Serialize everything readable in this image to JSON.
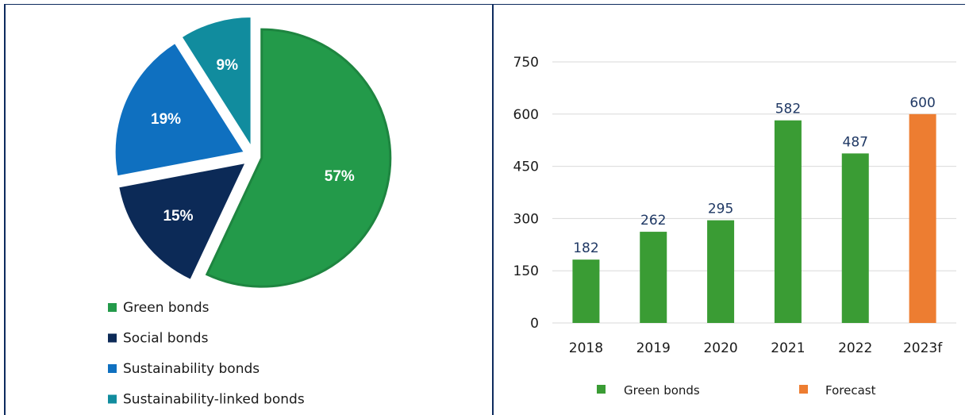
{
  "chart_data": [
    {
      "type": "pie",
      "slices": [
        {
          "label": "Green bonds",
          "value": 57,
          "text": "57%",
          "color": "#239a4a",
          "explode": 10
        },
        {
          "label": "Social bonds",
          "value": 15,
          "text": "15%",
          "color": "#0c2a57",
          "explode": 14
        },
        {
          "label": "Sustainability bonds",
          "value": 19,
          "text": "19%",
          "color": "#0f70c0",
          "explode": 14
        },
        {
          "label": "Sustainability-linked bonds",
          "value": 9,
          "text": "9%",
          "color": "#118c9e",
          "explode": 14
        }
      ],
      "legend": [
        "Green bonds",
        "Social bonds",
        "Sustainability bonds",
        "Sustainability-linked bonds"
      ],
      "legend_position": "bottom-left"
    },
    {
      "type": "bar",
      "categories": [
        "2018",
        "2019",
        "2020",
        "2021",
        "2022",
        "2023f"
      ],
      "values": [
        182,
        262,
        295,
        582,
        487,
        600
      ],
      "value_labels": [
        "182",
        "262",
        "295",
        "582",
        "487",
        "600"
      ],
      "bar_colors": [
        "#3a9c34",
        "#3a9c34",
        "#3a9c34",
        "#3a9c34",
        "#3a9c34",
        "#ed7d31"
      ],
      "yticks": [
        "0",
        "150",
        "300",
        "450",
        "600",
        "750"
      ],
      "ylim": [
        0,
        750
      ],
      "grid": true,
      "legend": [
        {
          "name": "Green bonds",
          "color": "#3a9c34"
        },
        {
          "name": "Forecast",
          "color": "#ed7d31"
        }
      ],
      "legend_position": "bottom"
    }
  ]
}
